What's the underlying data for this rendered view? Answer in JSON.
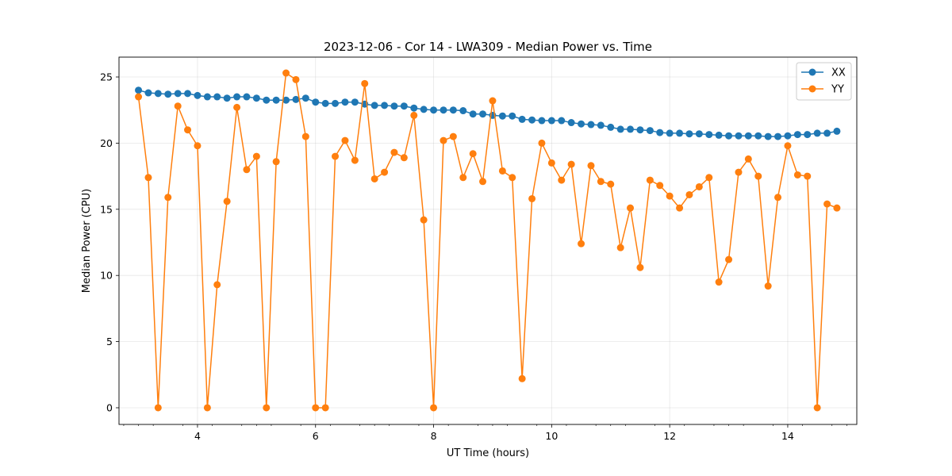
{
  "chart_data": {
    "type": "line",
    "title": "2023-12-06 - Cor 14 - LWA309 - Median Power vs. Time",
    "xlabel": "UT Time (hours)",
    "ylabel": "Median Power (CPU)",
    "xlim": [
      2.67,
      15.17
    ],
    "ylim": [
      -1.26,
      26.5
    ],
    "xticks": [
      4,
      6,
      8,
      10,
      12,
      14
    ],
    "xtick_labels": [
      "4",
      "6",
      "8",
      "10",
      "12",
      "14"
    ],
    "yticks": [
      0,
      5,
      10,
      15,
      20,
      25
    ],
    "ytick_labels": [
      "0",
      "5",
      "10",
      "15",
      "20",
      "25"
    ],
    "grid": true,
    "legend_position": "top-right",
    "x": [
      3.0,
      3.167,
      3.333,
      3.5,
      3.667,
      3.833,
      4.0,
      4.167,
      4.333,
      4.5,
      4.667,
      4.833,
      5.0,
      5.167,
      5.333,
      5.5,
      5.667,
      5.833,
      6.0,
      6.167,
      6.333,
      6.5,
      6.667,
      6.833,
      7.0,
      7.167,
      7.333,
      7.5,
      7.667,
      7.833,
      8.0,
      8.167,
      8.333,
      8.5,
      8.667,
      8.833,
      9.0,
      9.167,
      9.333,
      9.5,
      9.667,
      9.833,
      10.0,
      10.167,
      10.333,
      10.5,
      10.667,
      10.833,
      11.0,
      11.167,
      11.333,
      11.5,
      11.667,
      11.833,
      12.0,
      12.167,
      12.333,
      12.5,
      12.667,
      12.833,
      13.0,
      13.167,
      13.333,
      13.5,
      13.667,
      13.833,
      14.0,
      14.167,
      14.333,
      14.5,
      14.667,
      14.833
    ],
    "series": [
      {
        "name": "XX",
        "color": "#1f77b4",
        "values": [
          24.0,
          23.8,
          23.75,
          23.7,
          23.75,
          23.75,
          23.6,
          23.5,
          23.5,
          23.4,
          23.5,
          23.5,
          23.4,
          23.25,
          23.25,
          23.25,
          23.3,
          23.4,
          23.1,
          23.0,
          23.0,
          23.1,
          23.1,
          22.95,
          22.85,
          22.85,
          22.8,
          22.8,
          22.65,
          22.55,
          22.5,
          22.5,
          22.5,
          22.45,
          22.2,
          22.2,
          22.1,
          22.05,
          22.05,
          21.8,
          21.75,
          21.7,
          21.7,
          21.7,
          21.55,
          21.45,
          21.4,
          21.35,
          21.2,
          21.05,
          21.05,
          21.0,
          20.95,
          20.8,
          20.75,
          20.75,
          20.7,
          20.7,
          20.65,
          20.6,
          20.55,
          20.55,
          20.55,
          20.55,
          20.5,
          20.5,
          20.55,
          20.65,
          20.65,
          20.75,
          20.75,
          20.9
        ]
      },
      {
        "name": "YY",
        "color": "#ff7f0e",
        "values": [
          23.5,
          17.4,
          0.0,
          15.9,
          22.8,
          21.0,
          19.8,
          0.0,
          9.3,
          15.6,
          22.7,
          18.0,
          19.0,
          0.0,
          18.6,
          25.3,
          24.8,
          20.5,
          0.0,
          0.0,
          19.0,
          20.2,
          18.7,
          24.5,
          17.3,
          17.8,
          19.3,
          18.9,
          22.1,
          14.2,
          0.0,
          20.2,
          20.5,
          17.4,
          19.2,
          17.1,
          23.2,
          17.9,
          17.4,
          2.2,
          15.8,
          20.0,
          18.5,
          17.2,
          18.4,
          12.4,
          18.3,
          17.1,
          16.9,
          12.1,
          15.1,
          10.6,
          17.2,
          16.8,
          16.0,
          15.1,
          16.1,
          16.7,
          17.4,
          9.5,
          11.2,
          17.8,
          18.8,
          17.5,
          9.2,
          15.9,
          19.8,
          17.6,
          17.5,
          0.0,
          15.4,
          15.1
        ]
      }
    ]
  }
}
